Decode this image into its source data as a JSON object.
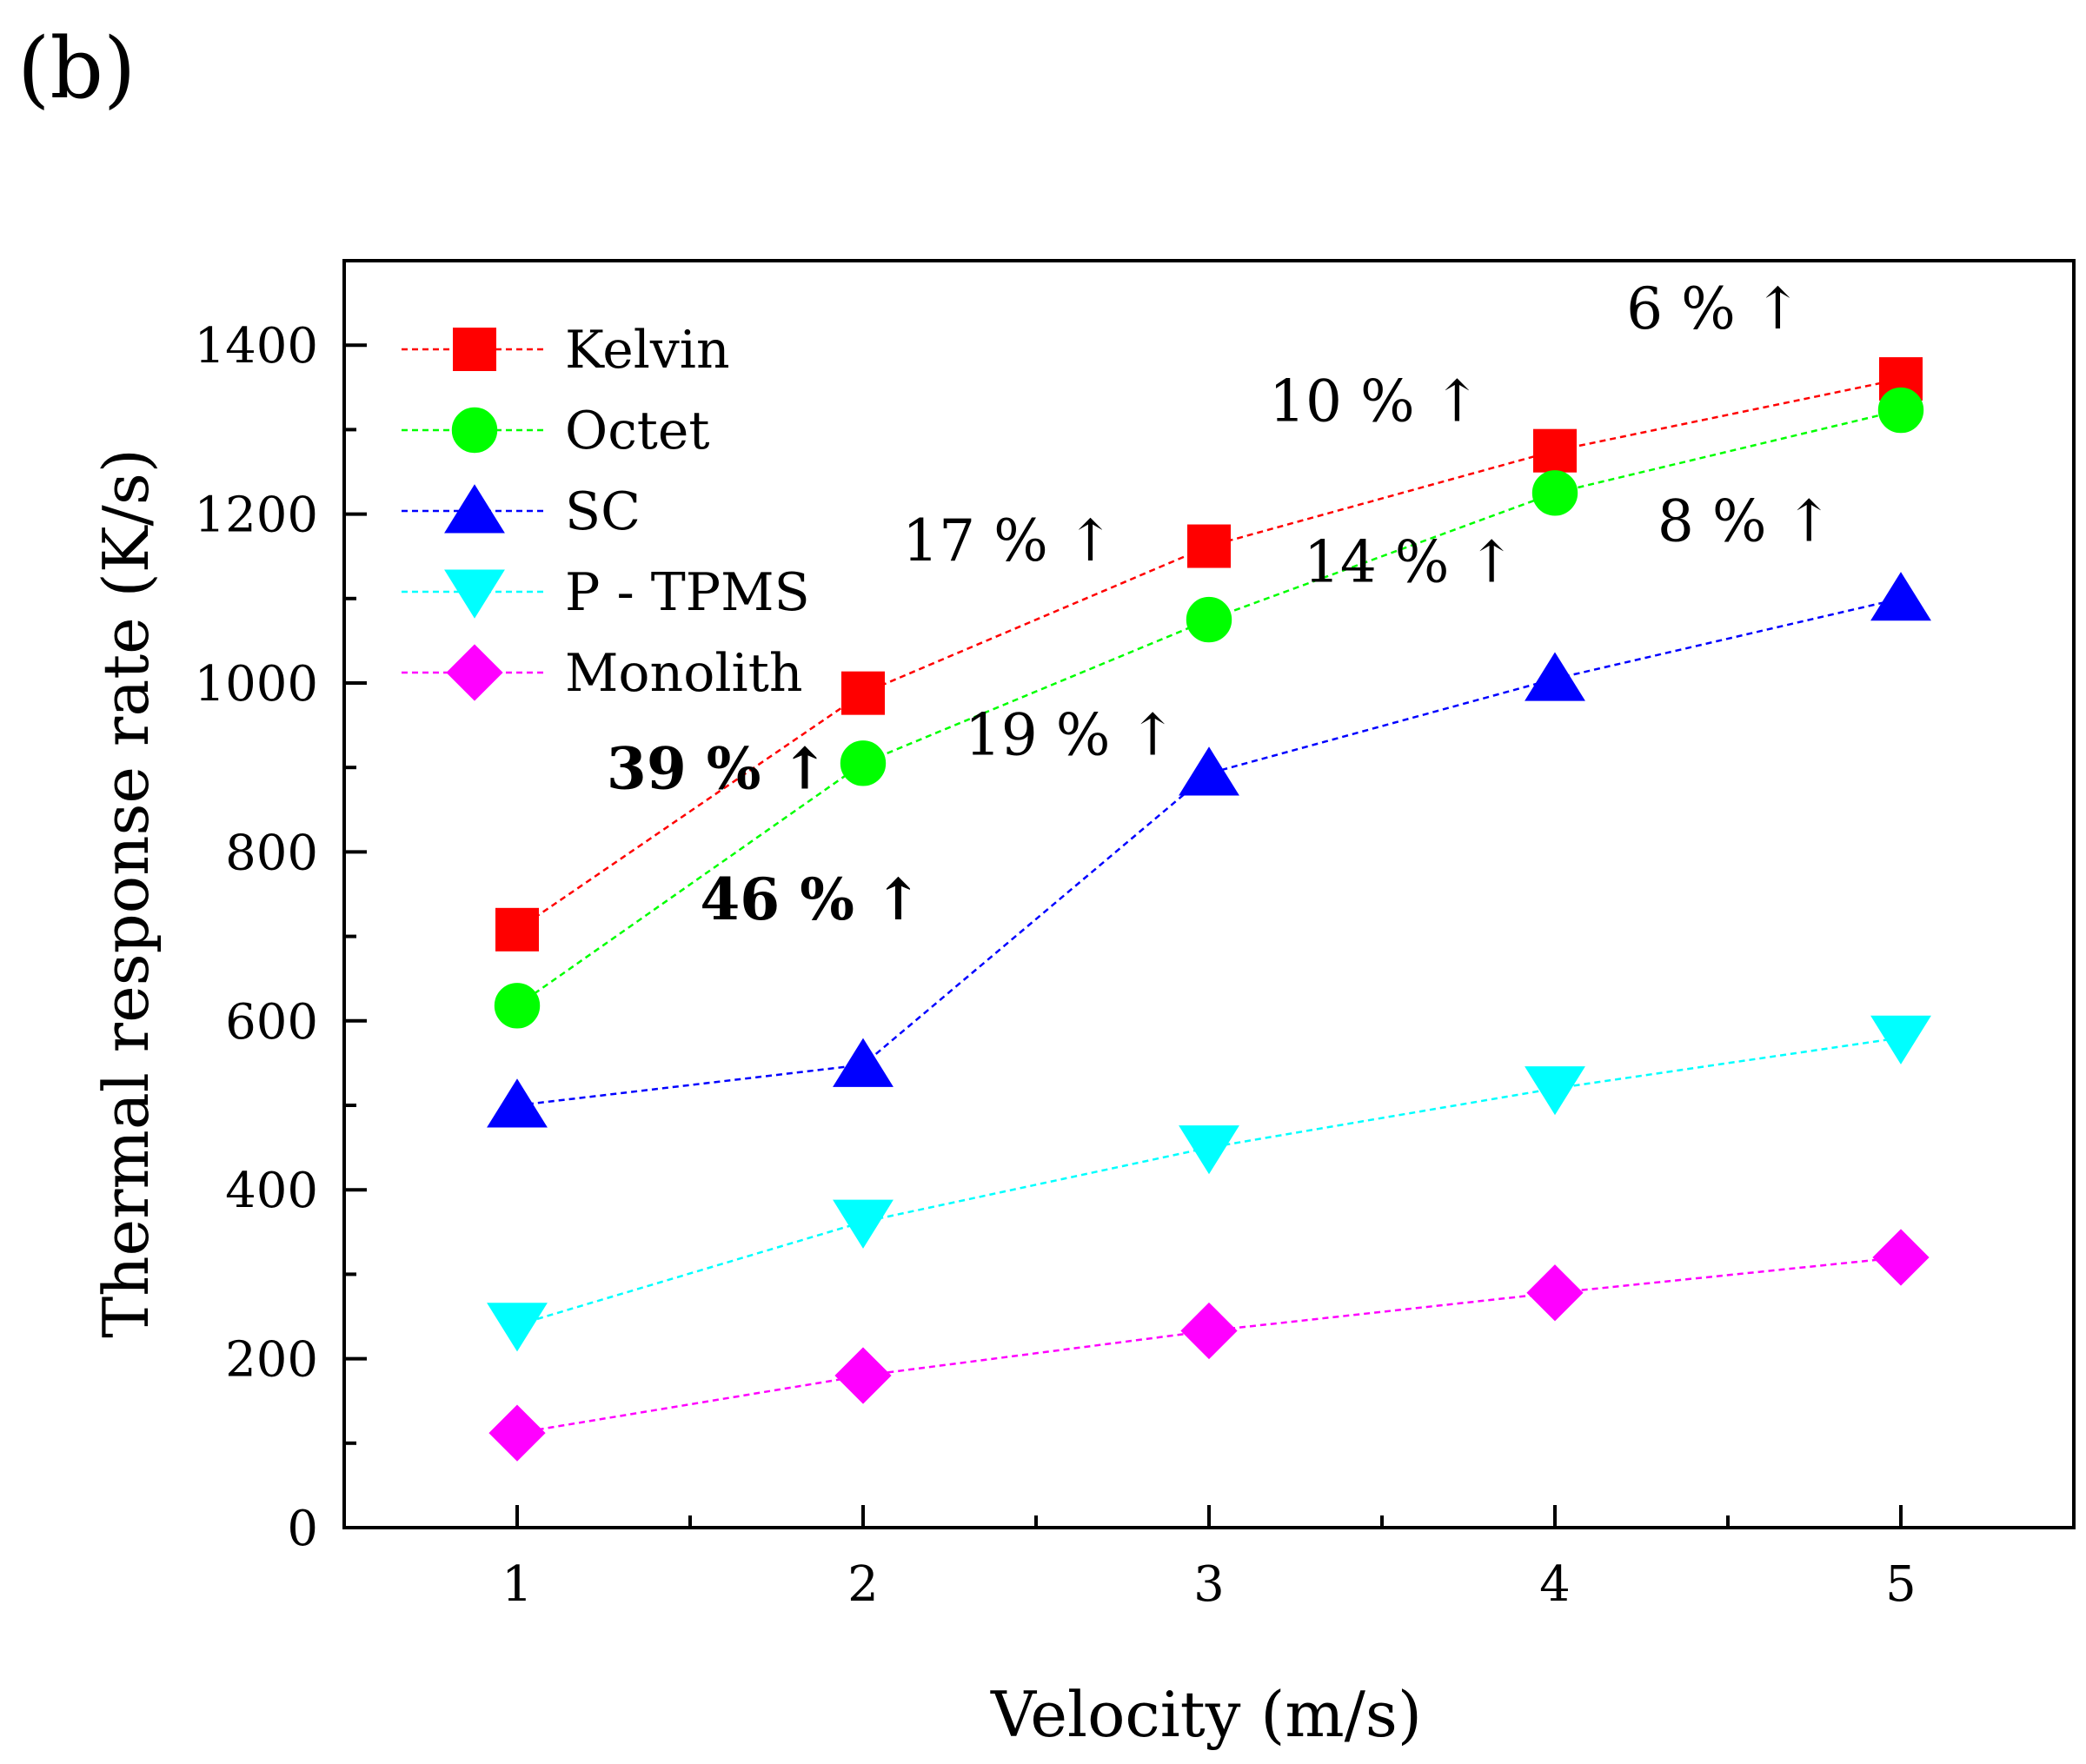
{
  "panel_label": "(b)",
  "chart_data": {
    "type": "line",
    "title": "",
    "xlabel": "Velocity (m/s)",
    "ylabel": "Thermal response rate (K/s)",
    "xlim": [
      0.5,
      5.5
    ],
    "ylim": [
      0,
      1500
    ],
    "xticks": [
      1,
      2,
      3,
      4,
      5
    ],
    "xtick_labels": [
      "1",
      "2",
      "3",
      "4",
      "5"
    ],
    "yticks": [
      0,
      200,
      400,
      600,
      800,
      1000,
      1200,
      1400
    ],
    "ytick_labels": [
      "0",
      "200",
      "400",
      "600",
      "800",
      "1000",
      "1200",
      "1400"
    ],
    "grid": false,
    "legend_position": "top-left",
    "x": [
      1,
      2,
      3,
      4,
      5
    ],
    "series": [
      {
        "name": "Kelvin",
        "values": [
          708,
          988,
          1162,
          1275,
          1360
        ],
        "color": "#ff0000",
        "marker": "square"
      },
      {
        "name": "Octet",
        "values": [
          618,
          905,
          1075,
          1225,
          1323
        ],
        "color": "#00ff00",
        "marker": "circle"
      },
      {
        "name": "SC",
        "values": [
          500,
          548,
          893,
          1005,
          1100
        ],
        "color": "#0000ff",
        "marker": "triangle-up"
      },
      {
        "name": "P - TPMS",
        "values": [
          240,
          362,
          450,
          520,
          580
        ],
        "color": "#00ffff",
        "marker": "triangle-down"
      },
      {
        "name": "Monolith",
        "values": [
          112,
          180,
          233,
          278,
          320
        ],
        "color": "#ff00ff",
        "marker": "diamond"
      }
    ],
    "annotations": [
      {
        "text": "39 % ↑",
        "x": 1.58,
        "y": 875,
        "bold": true
      },
      {
        "text": "46 % ↑",
        "x": 1.85,
        "y": 720,
        "bold": true
      },
      {
        "text": "17 % ↑",
        "x": 2.42,
        "y": 1145,
        "bold": false
      },
      {
        "text": "19 % ↑",
        "x": 2.6,
        "y": 915,
        "bold": false
      },
      {
        "text": "10 % ↑",
        "x": 3.48,
        "y": 1310,
        "bold": false
      },
      {
        "text": "14 % ↑",
        "x": 3.58,
        "y": 1120,
        "bold": false
      },
      {
        "text": "6 % ↑",
        "x": 4.46,
        "y": 1420,
        "bold": false
      },
      {
        "text": "8 % ↑",
        "x": 4.55,
        "y": 1168,
        "bold": false
      }
    ]
  }
}
